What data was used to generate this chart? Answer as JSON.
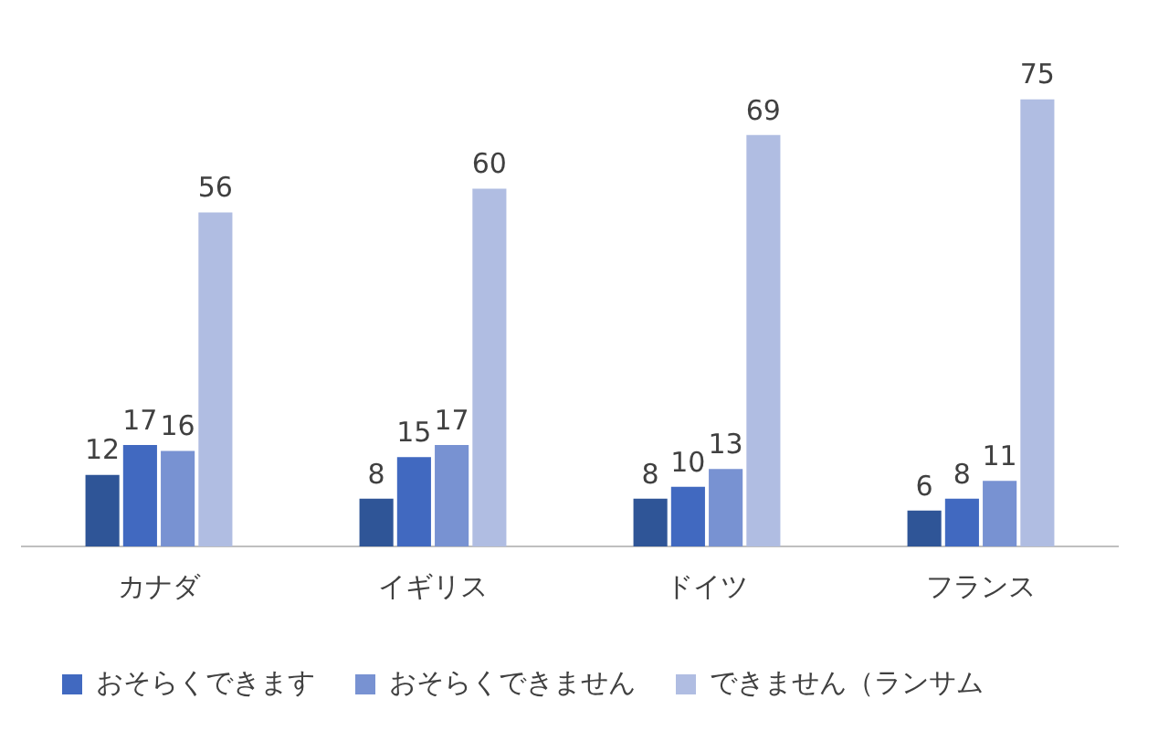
{
  "chart_data": {
    "type": "bar",
    "categories": [
      "カナダ",
      "イギリス",
      "ドイツ",
      "フランス"
    ],
    "series": [
      {
        "color": "#2f5597",
        "values": [
          12,
          8,
          8,
          6
        ]
      },
      {
        "name": "おそらくできます",
        "color": "#4169c0",
        "values": [
          17,
          15,
          10,
          8
        ]
      },
      {
        "name": "おそらくできません",
        "color": "#7892d2",
        "values": [
          16,
          17,
          13,
          11
        ]
      },
      {
        "name": "できません（ランサム",
        "color": "#b0bde2",
        "values": [
          56,
          60,
          69,
          75
        ]
      }
    ],
    "data_labels": true,
    "grid": false,
    "legend": "bottom"
  }
}
